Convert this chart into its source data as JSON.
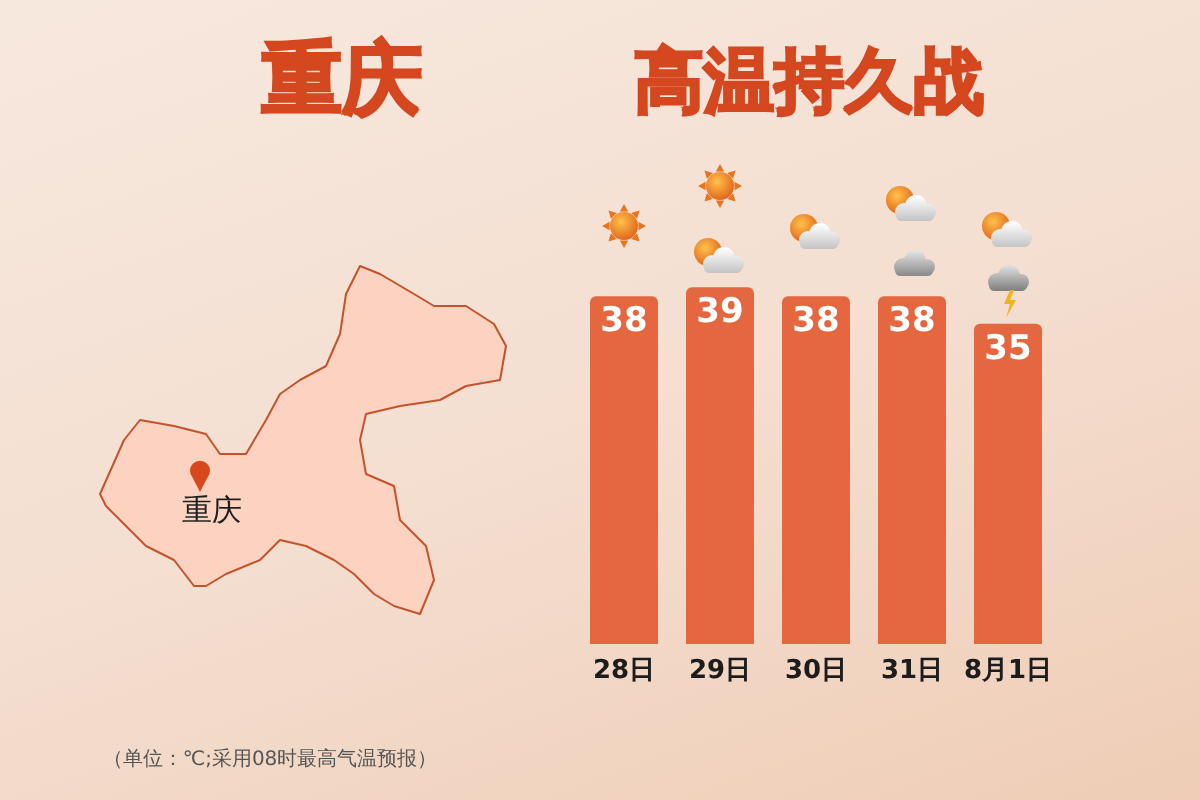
{
  "chart_data": {
    "type": "bar",
    "title": "重庆",
    "subtitle": "高温持久战",
    "annotations": [
      "重庆",
      "（单位：℃;采用08时最高气温预报）"
    ],
    "categories": [
      "28日",
      "29日",
      "30日",
      "31日",
      "8月1日"
    ],
    "values": [
      38,
      39,
      38,
      38,
      35
    ],
    "color": "#e5673f",
    "data_labels": true
  }
}
